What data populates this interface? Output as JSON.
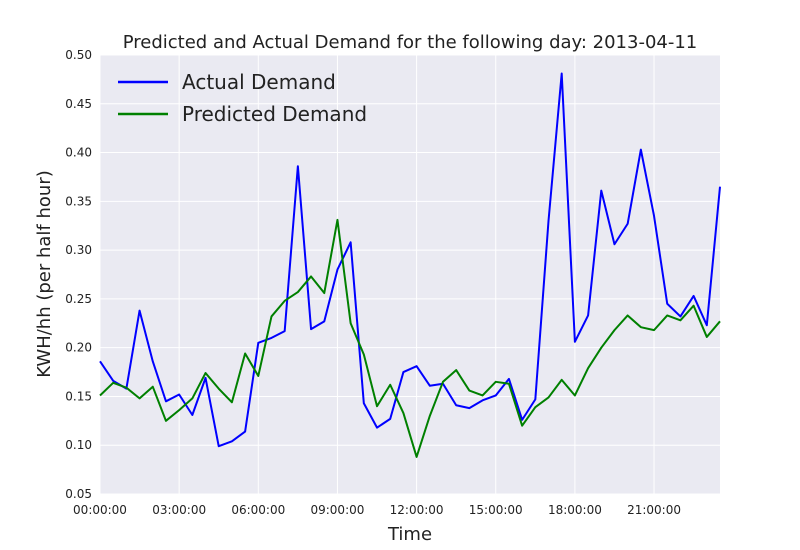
{
  "chart_data": {
    "type": "line",
    "title": "Predicted and Actual Demand for the following day: 2013-04-11",
    "xlabel": "Time",
    "ylabel": "KWH/hh (per half hour)",
    "x_tick_labels": [
      "00:00:00",
      "03:00:00",
      "06:00:00",
      "09:00:00",
      "12:00:00",
      "15:00:00",
      "18:00:00",
      "21:00:00"
    ],
    "x_tick_hours": [
      0,
      3,
      6,
      9,
      12,
      15,
      18,
      21
    ],
    "x_hours": [
      0,
      0.5,
      1,
      1.5,
      2,
      2.5,
      3,
      3.5,
      4,
      4.5,
      5,
      5.5,
      6,
      6.5,
      7,
      7.5,
      8,
      8.5,
      9,
      9.5,
      10,
      10.5,
      11,
      11.5,
      12,
      12.5,
      13,
      13.5,
      14,
      14.5,
      15,
      15.5,
      16,
      16.5,
      17,
      17.5,
      18,
      18.5,
      19,
      19.5,
      20,
      20.5,
      21,
      21.5,
      22,
      22.5,
      23,
      23.5
    ],
    "xlim": [
      0,
      23.5
    ],
    "ylim": [
      0.05,
      0.5
    ],
    "y_ticks": [
      "0.05",
      "0.10",
      "0.15",
      "0.20",
      "0.25",
      "0.30",
      "0.35",
      "0.40",
      "0.45",
      "0.50"
    ],
    "grid": true,
    "legend_position": "top-left",
    "series": [
      {
        "name": "Actual Demand",
        "color": "#0000ff",
        "values": [
          0.186,
          0.166,
          0.158,
          0.238,
          0.186,
          0.145,
          0.152,
          0.131,
          0.169,
          0.099,
          0.104,
          0.114,
          0.205,
          0.21,
          0.217,
          0.386,
          0.219,
          0.227,
          0.28,
          0.308,
          0.143,
          0.118,
          0.127,
          0.175,
          0.181,
          0.161,
          0.163,
          0.141,
          0.138,
          0.146,
          0.151,
          0.168,
          0.126,
          0.147,
          0.33,
          0.481,
          0.206,
          0.233,
          0.361,
          0.306,
          0.327,
          0.403,
          0.335,
          0.245,
          0.232,
          0.253,
          0.223,
          0.365
        ]
      },
      {
        "name": "Predicted Demand",
        "color": "#008000",
        "values": [
          0.151,
          0.164,
          0.159,
          0.148,
          0.16,
          0.125,
          0.136,
          0.148,
          0.174,
          0.158,
          0.144,
          0.194,
          0.171,
          0.232,
          0.248,
          0.257,
          0.273,
          0.256,
          0.331,
          0.225,
          0.193,
          0.14,
          0.162,
          0.133,
          0.088,
          0.13,
          0.165,
          0.177,
          0.156,
          0.151,
          0.165,
          0.163,
          0.12,
          0.139,
          0.149,
          0.167,
          0.151,
          0.179,
          0.2,
          0.218,
          0.233,
          0.221,
          0.218,
          0.233,
          0.228,
          0.243,
          0.211,
          0.227
        ]
      }
    ]
  }
}
